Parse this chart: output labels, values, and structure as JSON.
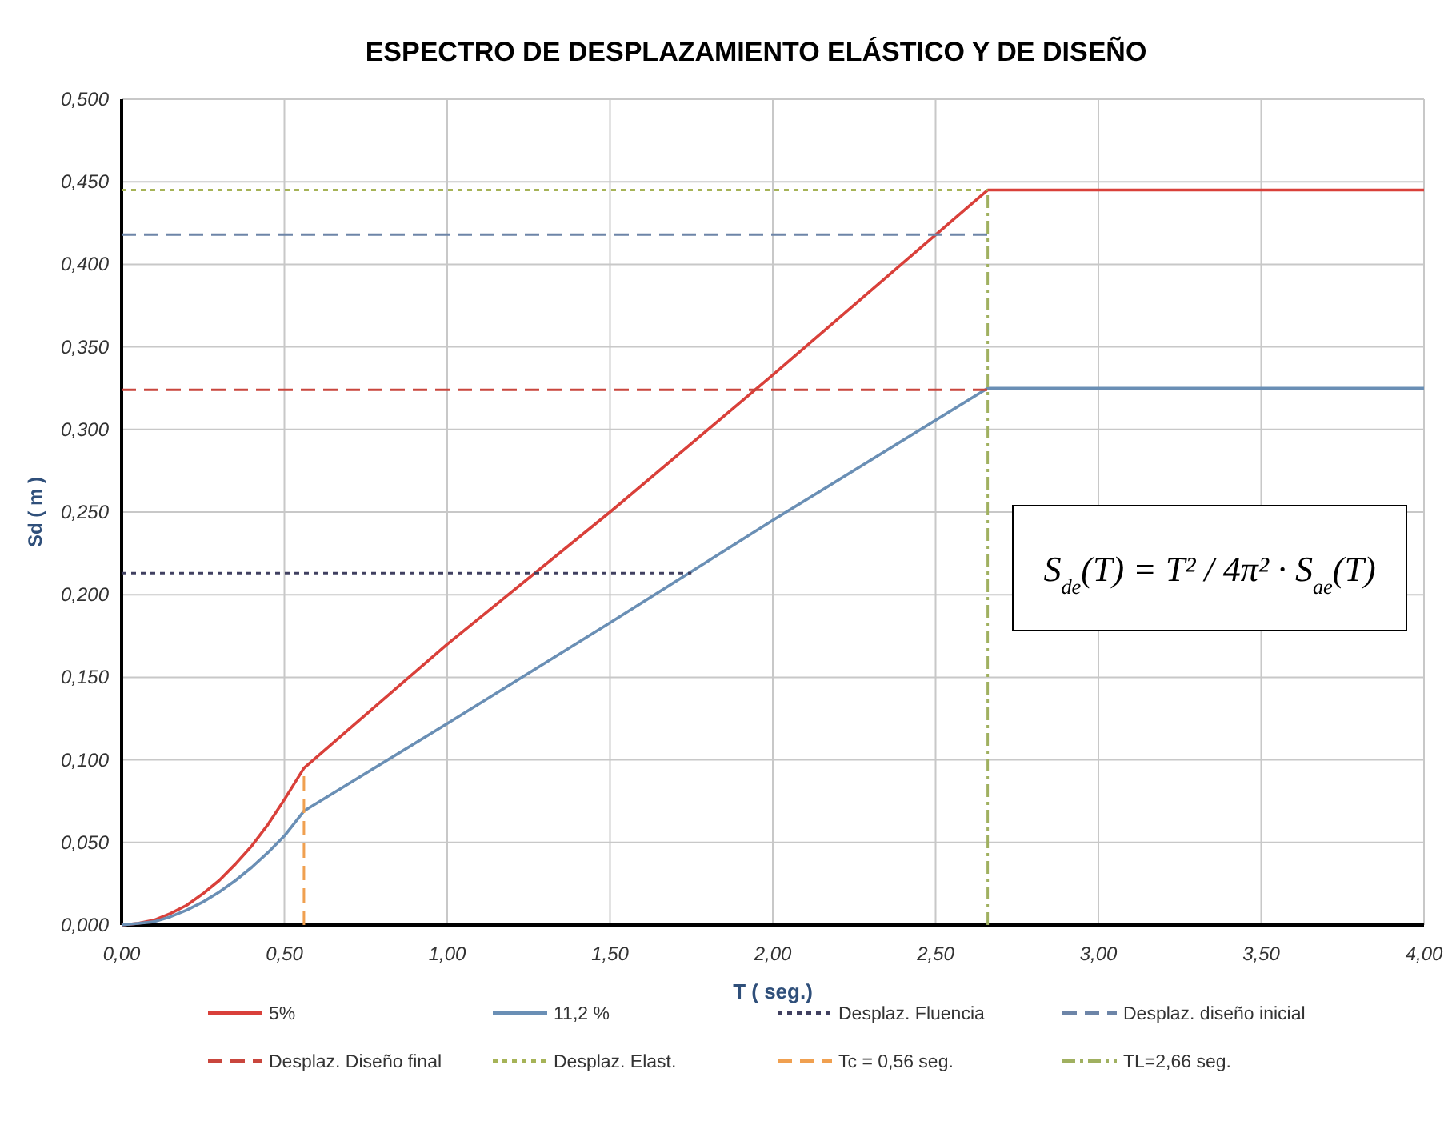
{
  "chart_data": {
    "type": "line",
    "title": "ESPECTRO DE DESPLAZAMIENTO ELÁSTICO Y DE DISEÑO",
    "xlabel": "T ( seg.)",
    "ylabel": "Sd  ( m )",
    "xlim": [
      0,
      4
    ],
    "ylim": [
      0,
      0.5
    ],
    "xticks": [
      {
        "value": 0,
        "label": "0,00"
      },
      {
        "value": 0.5,
        "label": "0,50"
      },
      {
        "value": 1,
        "label": "1,00"
      },
      {
        "value": 1.5,
        "label": "1,50"
      },
      {
        "value": 2,
        "label": "2,00"
      },
      {
        "value": 2.5,
        "label": "2,50"
      },
      {
        "value": 3,
        "label": "3,00"
      },
      {
        "value": 3.5,
        "label": "3,50"
      },
      {
        "value": 4,
        "label": "4,00"
      }
    ],
    "yticks": [
      {
        "value": 0,
        "label": "0,000"
      },
      {
        "value": 0.05,
        "label": "0,050"
      },
      {
        "value": 0.1,
        "label": "0,100"
      },
      {
        "value": 0.15,
        "label": "0,150"
      },
      {
        "value": 0.2,
        "label": "0,200"
      },
      {
        "value": 0.25,
        "label": "0,250"
      },
      {
        "value": 0.3,
        "label": "0,300"
      },
      {
        "value": 0.35,
        "label": "0,350"
      },
      {
        "value": 0.4,
        "label": "0,400"
      },
      {
        "value": 0.45,
        "label": "0,450"
      },
      {
        "value": 0.5,
        "label": "0,500"
      }
    ],
    "grid": true,
    "legend": "bottom",
    "annotations": [
      "S$_{de}$(T) = T² / 4π² · S$_{ae}$(T)"
    ],
    "series": [
      {
        "name": "5%",
        "color": "#d9403a",
        "line_style": "solid",
        "x": [
          0,
          0.05,
          0.1,
          0.15,
          0.2,
          0.25,
          0.3,
          0.35,
          0.4,
          0.45,
          0.5,
          0.56,
          1,
          1.5,
          2,
          2.66,
          4
        ],
        "values": [
          0,
          0.001,
          0.003,
          0.007,
          0.012,
          0.019,
          0.027,
          0.037,
          0.048,
          0.061,
          0.076,
          0.095,
          0.17,
          0.25,
          0.333,
          0.445,
          0.445
        ]
      },
      {
        "name": "11,2 %",
        "color": "#6a8fb5",
        "line_style": "solid",
        "x": [
          0,
          0.05,
          0.1,
          0.15,
          0.2,
          0.25,
          0.3,
          0.35,
          0.4,
          0.45,
          0.5,
          0.56,
          1,
          1.5,
          2,
          2.66,
          4
        ],
        "values": [
          0,
          0.001,
          0.002,
          0.005,
          0.009,
          0.014,
          0.02,
          0.027,
          0.035,
          0.044,
          0.054,
          0.069,
          0.122,
          0.183,
          0.245,
          0.325,
          0.325
        ]
      },
      {
        "name": "Desplaz. Fluencia",
        "color": "#404060",
        "line_style": "dotted",
        "x": [
          0,
          1.75
        ],
        "values": [
          0.213,
          0.213
        ]
      },
      {
        "name": "Desplaz. diseño inicial",
        "color": "#6d85a8",
        "line_style": "dashed",
        "x": [
          0,
          2.66
        ],
        "values": [
          0.418,
          0.418
        ]
      },
      {
        "name": "Desplaz. Diseño final",
        "color": "#c9463d",
        "line_style": "dashed",
        "x": [
          0,
          2.66
        ],
        "values": [
          0.324,
          0.324
        ]
      },
      {
        "name": "Desplaz. Elast.",
        "color": "#a6b357",
        "line_style": "dotted",
        "x": [
          0,
          2.66
        ],
        "values": [
          0.445,
          0.445
        ]
      },
      {
        "name": "Tc = 0,56 seg.",
        "color": "#f0a050",
        "line_style": "dashed",
        "x": [
          0.56,
          0.56
        ],
        "values": [
          0,
          0.095
        ]
      },
      {
        "name": "TL=2,66 seg.",
        "color": "#a0b060",
        "line_style": "dashdot",
        "x": [
          2.66,
          2.66
        ],
        "values": [
          0,
          0.445
        ]
      }
    ]
  }
}
